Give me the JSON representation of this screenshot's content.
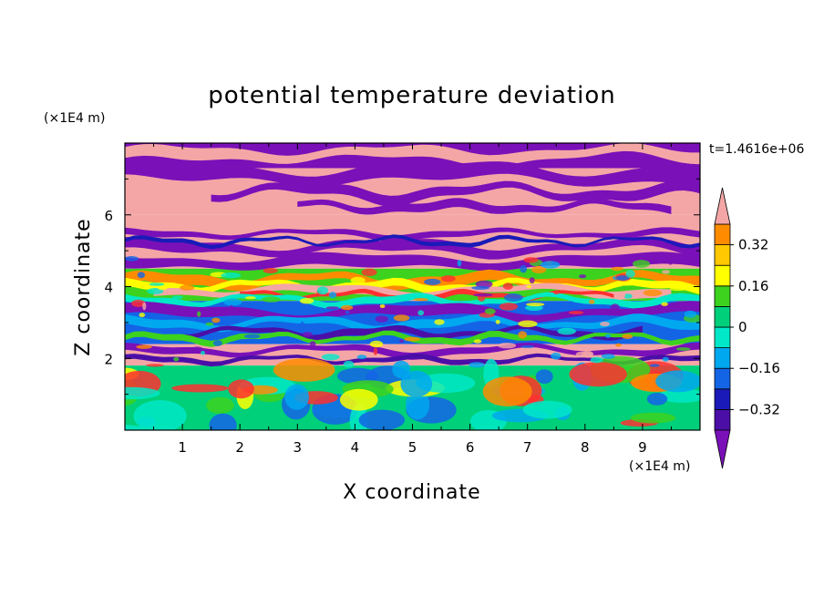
{
  "chart_data": {
    "type": "heatmap",
    "title": "potential temperature deviation",
    "xlabel": "X coordinate",
    "ylabel": "Z coordinate",
    "x_unit": "(×1E4 m)",
    "z_unit": "(×1E4 m)",
    "time_label": "t=1.4616e+06",
    "xlim": [
      0,
      10
    ],
    "ylim": [
      0,
      8
    ],
    "x_ticks": [
      "1",
      "2",
      "3",
      "4",
      "5",
      "6",
      "7",
      "8",
      "9"
    ],
    "y_ticks": [
      "2",
      "4",
      "6"
    ],
    "colorbar": {
      "levels": [
        -0.48,
        -0.4,
        -0.32,
        -0.24,
        -0.16,
        -0.08,
        0,
        0.08,
        0.16,
        0.24,
        0.32,
        0.4,
        0.48
      ],
      "tick_labels": [
        "0.32",
        "0.16",
        "0",
        "−0.16",
        "−0.32"
      ],
      "tick_values": [
        0.32,
        0.16,
        0,
        -0.16,
        -0.32
      ],
      "colors_low_to_high": [
        "#7a10b8",
        "#4b0fa8",
        "#1a1ab8",
        "#1464e6",
        "#00a8f0",
        "#00e8c8",
        "#00d07a",
        "#3cd21e",
        "#ffff00",
        "#ffc800",
        "#ff8c00",
        "#ff3030",
        "#f4a6a6"
      ]
    },
    "bands": [
      {
        "z_range": [
          7.3,
          8.0
        ],
        "dominant": "upper",
        "note": "alternating purple and pink"
      },
      {
        "z_range": [
          5.8,
          7.3
        ],
        "dominant": "purple/pink layers"
      },
      {
        "z_range": [
          4.5,
          5.8
        ],
        "dominant": "pink with purple streaks"
      },
      {
        "z_range": [
          3.6,
          4.5
        ],
        "dominant": "mixed warm (orange/yellow/green)"
      },
      {
        "z_range": [
          2.4,
          3.6
        ],
        "dominant": "blue/purple/cyan"
      },
      {
        "z_range": [
          1.8,
          2.4
        ],
        "dominant": "pink and purple"
      },
      {
        "z_range": [
          0.0,
          1.8
        ],
        "dominant": "green/cyan turbulent"
      }
    ]
  }
}
